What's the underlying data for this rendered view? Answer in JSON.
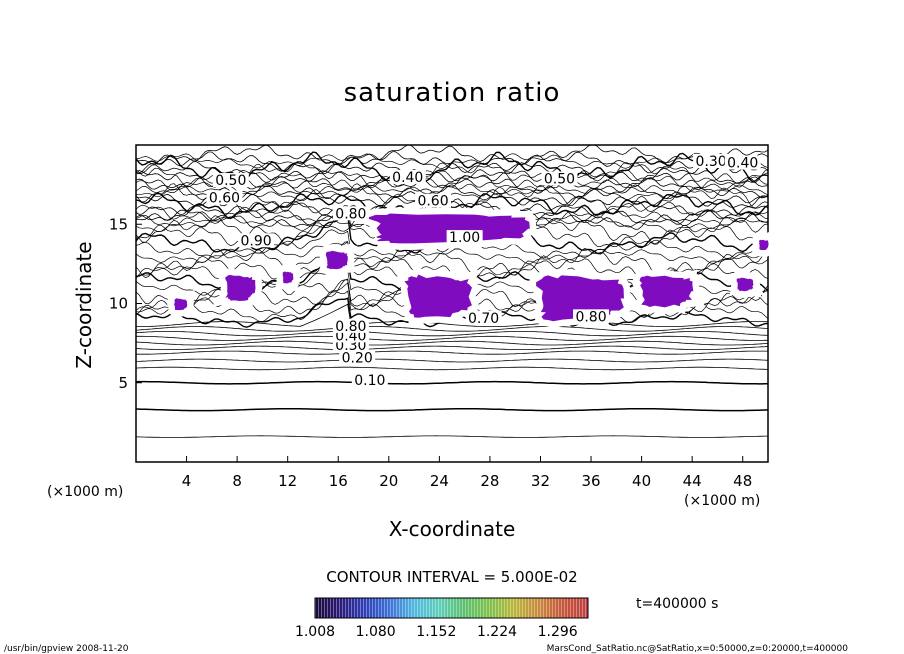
{
  "chart_data": {
    "type": "contour",
    "title": "saturation ratio",
    "xlabel": "X-coordinate",
    "ylabel": "Z-coordinate",
    "x_unit": "(×1000 m)",
    "y_unit": "(×1000 m)",
    "xlim": [
      0,
      50
    ],
    "ylim": [
      0,
      20
    ],
    "x_ticks": [
      4,
      8,
      12,
      16,
      20,
      24,
      28,
      32,
      36,
      40,
      44,
      48
    ],
    "y_ticks": [
      5,
      10,
      15
    ],
    "contour_interval_text": "CONTOUR INTERVAL = 5.000E-02",
    "contour_labels": [
      {
        "text": "0.10",
        "x": 18.5,
        "z": 5.0
      },
      {
        "text": "0.20",
        "x": 17.5,
        "z": 6.4
      },
      {
        "text": "0.30",
        "x": 17.0,
        "z": 7.2
      },
      {
        "text": "0.40",
        "x": 17.0,
        "z": 7.8
      },
      {
        "text": "0.80",
        "x": 17.0,
        "z": 8.4
      },
      {
        "text": "0.80",
        "x": 36.0,
        "z": 9.0
      },
      {
        "text": "0.70",
        "x": 27.5,
        "z": 8.9
      },
      {
        "text": "0.90",
        "x": 9.5,
        "z": 13.8
      },
      {
        "text": "0.80",
        "x": 17.0,
        "z": 15.5
      },
      {
        "text": "0.60",
        "x": 7.0,
        "z": 16.5
      },
      {
        "text": "0.50",
        "x": 7.5,
        "z": 17.6
      },
      {
        "text": "0.40",
        "x": 21.5,
        "z": 17.8
      },
      {
        "text": "0.60",
        "x": 23.5,
        "z": 16.3
      },
      {
        "text": "0.50",
        "x": 33.5,
        "z": 17.7
      },
      {
        "text": "1.00",
        "x": 26.0,
        "z": 14.0
      },
      {
        "text": "0.30",
        "x": 45.5,
        "z": 18.8
      },
      {
        "text": "0.40",
        "x": 48.0,
        "z": 18.7
      }
    ],
    "supersaturated_regions": [
      {
        "x": [
          18.0,
          31.0
        ],
        "z": [
          13.8,
          15.7
        ]
      },
      {
        "x": [
          15.0,
          16.7
        ],
        "z": [
          12.2,
          13.3
        ]
      },
      {
        "x": [
          7.0,
          9.4
        ],
        "z": [
          10.2,
          11.8
        ]
      },
      {
        "x": [
          11.6,
          12.4
        ],
        "z": [
          11.3,
          12.0
        ]
      },
      {
        "x": [
          3.0,
          4.0
        ],
        "z": [
          9.6,
          10.3
        ]
      },
      {
        "x": [
          21.2,
          26.5
        ],
        "z": [
          9.1,
          11.8
        ]
      },
      {
        "x": [
          31.5,
          38.5
        ],
        "z": [
          8.9,
          11.8
        ]
      },
      {
        "x": [
          39.7,
          44.0
        ],
        "z": [
          9.8,
          11.8
        ]
      },
      {
        "x": [
          47.5,
          48.8
        ],
        "z": [
          10.8,
          11.6
        ]
      },
      {
        "x": [
          49.3,
          50.0
        ],
        "z": [
          13.4,
          14.0
        ]
      }
    ],
    "colorbar": {
      "tick_labels": [
        "1.008",
        "1.080",
        "1.152",
        "1.224",
        "1.296"
      ],
      "range": [
        1.008,
        1.332
      ],
      "colors": [
        "#1a0a3a",
        "#2a1a7a",
        "#2f3fb8",
        "#3d72d8",
        "#52b8e0",
        "#5ecfb8",
        "#5cc070",
        "#7cc24a",
        "#b9b83a",
        "#c98a3c",
        "#c4563c",
        "#c04040"
      ]
    },
    "fill_color": "#7f0dbf",
    "time_text": "t=400000 s",
    "footer_left": "/usr/bin/gpview   2008-11-20",
    "footer_right": "MarsCond_SatRatio.nc@SatRatio,x=0:50000,z=0:20000,t=400000"
  }
}
